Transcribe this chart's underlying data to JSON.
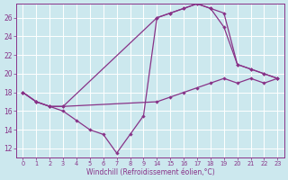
{
  "bg_color": "#cce8ee",
  "line_color": "#883388",
  "xlabel": "Windchill (Refroidissement éolien,°C)",
  "xtick_labels": [
    "0",
    "1",
    "2",
    "3",
    "4",
    "5",
    "6",
    "7",
    "8",
    "9",
    "14",
    "15",
    "16",
    "17",
    "18",
    "19",
    "20",
    "21",
    "22",
    "23"
  ],
  "yticks": [
    12,
    14,
    16,
    18,
    20,
    22,
    24,
    26
  ],
  "ylim": [
    11.0,
    27.5
  ],
  "line1_y": [
    18.0,
    17.0,
    16.5,
    16.0,
    15.0,
    14.0,
    13.5,
    11.5,
    13.5,
    15.5,
    26.0,
    26.5,
    27.0,
    27.5,
    27.0,
    26.5,
    21.0,
    20.5,
    20.0,
    19.5
  ],
  "line2_y": [
    18.0,
    17.0,
    16.5,
    16.5,
    null,
    null,
    null,
    null,
    null,
    null,
    26.0,
    26.5,
    27.0,
    27.5,
    27.0,
    25.0,
    21.0,
    20.5,
    20.0,
    19.5
  ],
  "line3_y": [
    18.0,
    17.0,
    16.5,
    16.5,
    null,
    null,
    null,
    null,
    null,
    null,
    17.0,
    17.5,
    18.0,
    18.5,
    19.0,
    19.5,
    19.0,
    19.5,
    19.0,
    19.5
  ]
}
